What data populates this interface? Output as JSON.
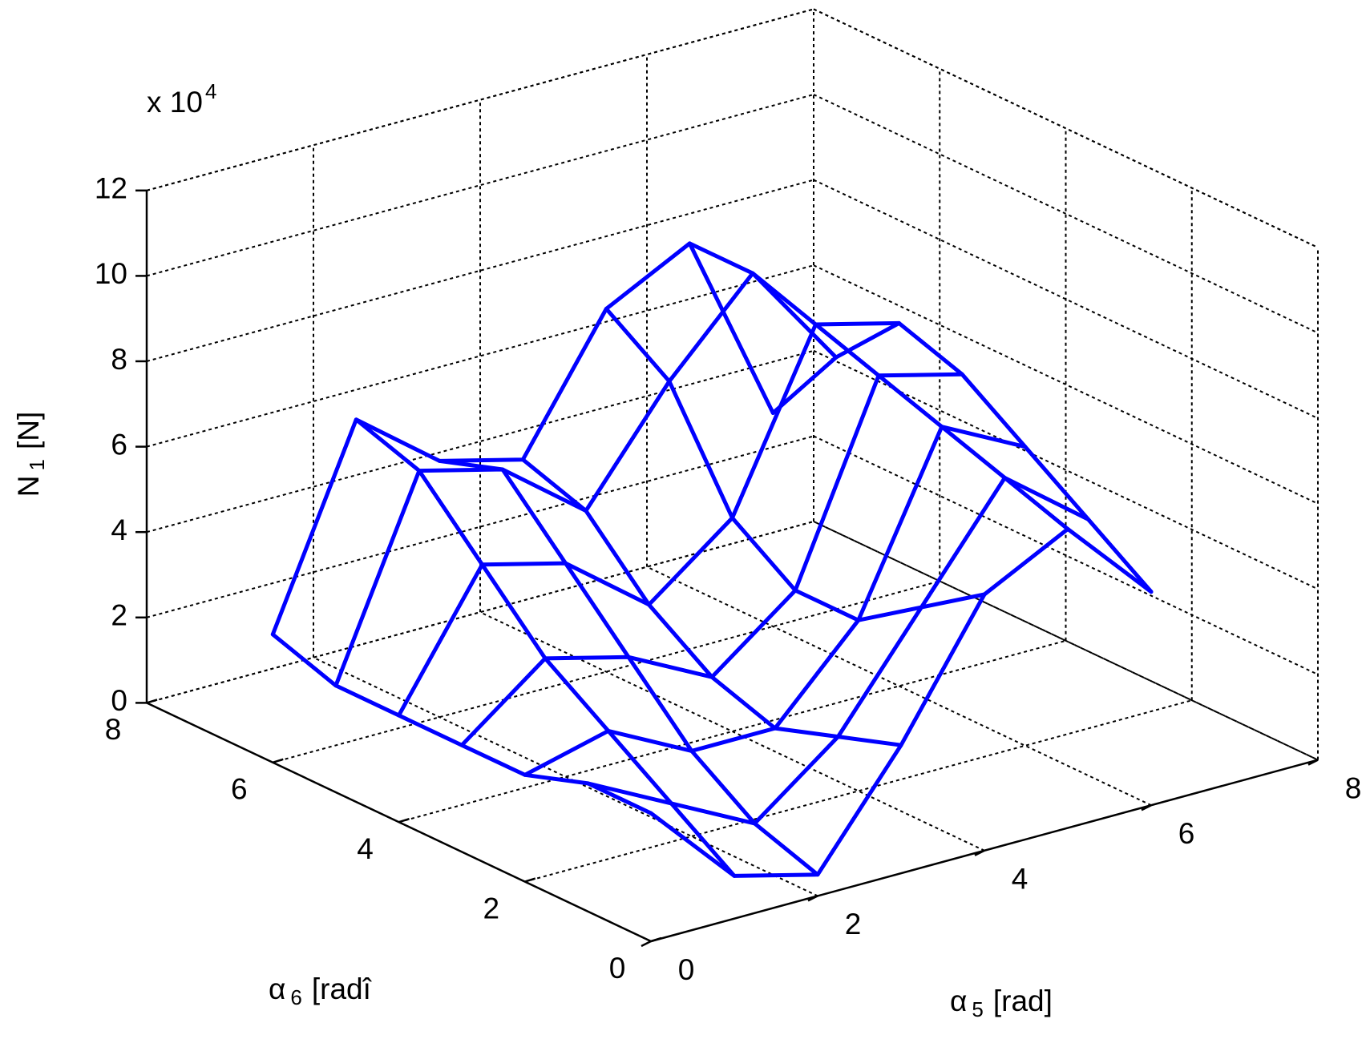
{
  "chart_data": {
    "type": "mesh3d",
    "x_label": {
      "symbol": "α",
      "sub": "5",
      "unit": "[rad]"
    },
    "y_label": {
      "symbol": "α",
      "sub": "6",
      "unit": "[radî"
    },
    "z_label": {
      "symbol": "N",
      "sub": "1",
      "unit": "[N]"
    },
    "z_multiplier": {
      "base": "x 10",
      "exp": "4"
    },
    "xlim": [
      0,
      8
    ],
    "ylim": [
      0,
      8
    ],
    "zlim": [
      0,
      12
    ],
    "xticks": [
      0,
      2,
      4,
      6,
      8
    ],
    "yticks": [
      0,
      2,
      4,
      6,
      8
    ],
    "zticks": [
      0,
      2,
      4,
      6,
      8,
      10,
      12
    ],
    "grid": true,
    "color": "#0000ff",
    "x": [
      0,
      1,
      2,
      3,
      4,
      5,
      6
    ],
    "y": [
      0,
      1,
      2,
      3,
      4,
      5,
      6
    ],
    "z": [
      [
        3,
        1,
        0.5,
        3,
        6,
        7,
        5
      ],
      [
        3,
        2,
        1,
        2.5,
        5,
        7.5,
        6
      ],
      [
        2.5,
        3,
        2,
        2,
        4,
        8,
        7
      ],
      [
        2.5,
        4,
        3.5,
        2.5,
        4,
        8.5,
        8
      ],
      [
        2.5,
        5.5,
        5,
        3.5,
        5,
        9,
        8.5
      ],
      [
        2.5,
        7,
        6.5,
        5,
        7.5,
        9.5,
        7
      ],
      [
        3,
        7.5,
        6,
        5.5,
        8.5,
        9.5,
        5
      ]
    ]
  }
}
